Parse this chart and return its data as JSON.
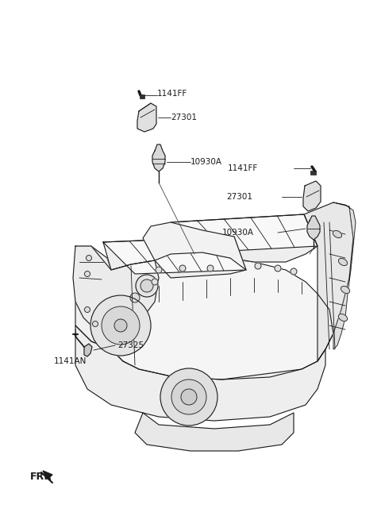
{
  "bg_color": "#ffffff",
  "line_color": "#1a1a1a",
  "figsize": [
    4.8,
    6.55
  ],
  "dpi": 100,
  "labels": {
    "lt_bolt": "1141FF",
    "lt_coil": "27301",
    "lt_plug": "10930A",
    "rt_bolt": "1141FF",
    "rt_coil": "27301",
    "rt_plug": "10930A",
    "bl_strap": "27325",
    "bl_bolt": "1141AN",
    "dir": "FR."
  },
  "font_size": 7.5,
  "lw": 0.8
}
